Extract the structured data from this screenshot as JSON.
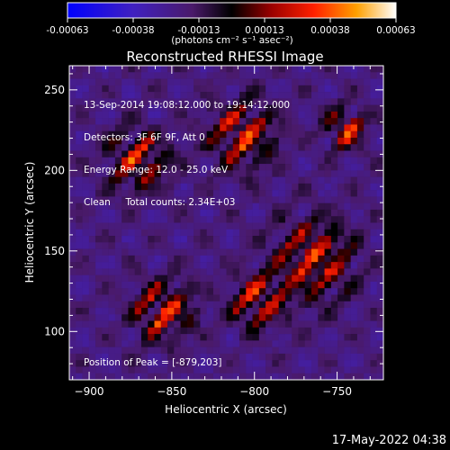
{
  "colorbar": {
    "ticks": [
      "-0.00063",
      "-0.00038",
      "-0.00013",
      "0.00013",
      "0.00038",
      "0.00063"
    ],
    "unit_label": "(photons cm⁻² s⁻¹ asec⁻²)"
  },
  "chart_data": {
    "type": "heatmap",
    "title": "Reconstructed RHESSI Image",
    "xlabel": "Heliocentric X (arcsec)",
    "ylabel": "Heliocentric Y (arcsec)",
    "xlim": [
      -912,
      -722
    ],
    "ylim": [
      70,
      265
    ],
    "x_ticks": [
      -900,
      -850,
      -800,
      -750
    ],
    "y_ticks": [
      100,
      150,
      200,
      250
    ],
    "x_tick_labels": [
      "−900",
      "−850",
      "−800",
      "−750"
    ],
    "y_tick_labels": [
      "100",
      "150",
      "200",
      "250"
    ],
    "colormap": "blue-purple-black-red-yellow-white",
    "value_range": [
      -0.00063,
      0.00063
    ],
    "peak": [
      -879,
      203
    ],
    "info_lines": [
      "13-Sep-2014 19:08:12.000 to 19:14:12.000",
      "Detectors: 3F 6F 9F, Att 0",
      "Energy Range: 12.0 - 25.0 keV",
      "Clean     Total counts: 2.34E+03"
    ],
    "peak_label": "Position of Peak = [-879,203]"
  },
  "footer": {
    "timestamp": "17-May-2022 04:38"
  }
}
